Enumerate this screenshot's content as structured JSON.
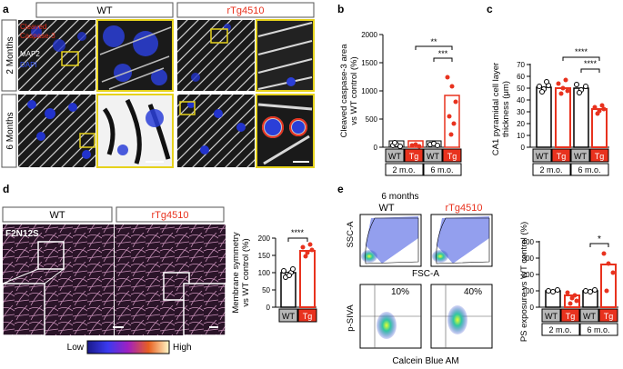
{
  "panel_letters": {
    "a": "a",
    "b": "b",
    "c": "c",
    "d": "d",
    "e": "e"
  },
  "panel_a": {
    "wt_label": "WT",
    "tg_label": "rTg4510",
    "row1": "2 Months",
    "row2": "6 Months",
    "stain1": "Cleaved",
    "stain2": "Caspase-3",
    "stain3": "MAP2",
    "stain4": "DAPI"
  },
  "panel_b": {
    "ylabel1": "Cleaved caspase-3 area",
    "ylabel2": "vs WT control (%)",
    "yticks": [
      "0",
      "500",
      "1000",
      "1500",
      "2000"
    ],
    "groups": [
      "WT",
      "Tg",
      "WT",
      "Tg"
    ],
    "ages": [
      "2 m.o.",
      "6 m.o."
    ],
    "sig_top": "**",
    "sig_inner": "***"
  },
  "panel_c": {
    "ylabel1": "CA1 pyramidal cell layer",
    "ylabel2": "thickness (μm)",
    "yticks": [
      "0",
      "10",
      "20",
      "30",
      "40",
      "50",
      "60",
      "70"
    ],
    "groups": [
      "WT",
      "Tg",
      "WT",
      "Tg"
    ],
    "ages": [
      "2 m.o.",
      "6 m.o."
    ],
    "sig_top": "****",
    "sig_inner": "****"
  },
  "panel_d": {
    "wt_label": "WT",
    "tg_label": "rTg4510",
    "probe": "F2N12S",
    "ylabel1": "Membrane symmetry",
    "ylabel2": "vs WT control (%)",
    "yticks": [
      "0",
      "50",
      "100",
      "150",
      "200"
    ],
    "groups": [
      "WT",
      "Tg"
    ],
    "sig": "****",
    "scale_low": "Low",
    "scale_high": "High"
  },
  "panel_e": {
    "title": "6 months",
    "wt_label": "WT",
    "tg_label": "rTg4510",
    "flow_y_top": "SSC-A",
    "flow_x_top": "FSC-A",
    "flow_y_bottom": "p-SIVA",
    "flow_x_bottom": "Calcein Blue AM",
    "pct_wt": "10%",
    "pct_tg": "40%",
    "ylabel": "PS exposure vs WT control (%)",
    "yticks": [
      "0",
      "100",
      "200",
      "300",
      "400"
    ],
    "groups": [
      "WT",
      "Tg",
      "WT",
      "Tg"
    ],
    "ages": [
      "2 m.o.",
      "6 m.o."
    ],
    "sig": "*"
  },
  "colors": {
    "red": "#e8321e",
    "blue": "#1f3fd6",
    "yellow": "#e6d21c",
    "grey": "#b8b8b8"
  }
}
